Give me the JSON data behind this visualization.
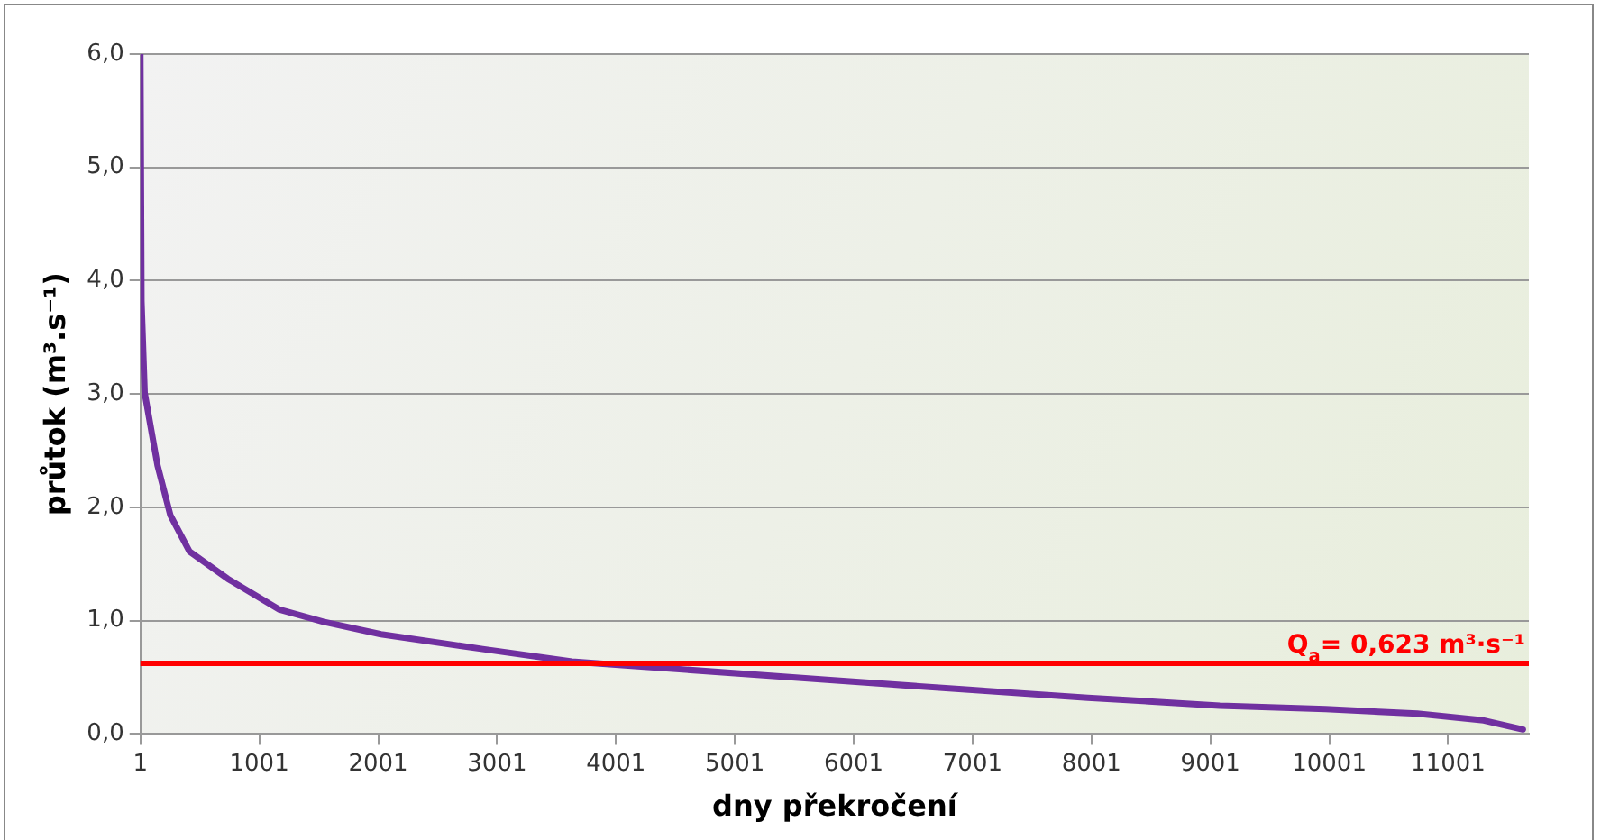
{
  "chart_data": {
    "type": "line",
    "xlabel": "dny překročení",
    "ylabel": "průtok (m³.s⁻¹)",
    "series": [
      {
        "color": "#7030a0",
        "x": [
          1,
          10,
          37,
          145,
          253,
          414,
          736,
          1165,
          1540,
          2025,
          2880,
          3630,
          4025,
          5750,
          6970,
          7970,
          9080,
          9970,
          10740,
          11300,
          11630
        ],
        "values": [
          6.0,
          3.82,
          3.01,
          2.37,
          1.93,
          1.61,
          1.37,
          1.1,
          0.99,
          0.88,
          0.75,
          0.64,
          0.61,
          0.48,
          0.39,
          0.32,
          0.25,
          0.22,
          0.18,
          0.12,
          0.04
        ]
      }
    ],
    "xlim": [
      1,
      11680
    ],
    "xticks": [
      1,
      1001,
      2001,
      3001,
      4001,
      5001,
      6001,
      7001,
      8001,
      9001,
      10001,
      11001
    ],
    "ylim": [
      0,
      6
    ],
    "yticks": [
      {
        "value": 0,
        "label": "0,0"
      },
      {
        "value": 1,
        "label": "1,0"
      },
      {
        "value": 2,
        "label": "2,0"
      },
      {
        "value": 3,
        "label": "3,0"
      },
      {
        "value": 4,
        "label": "4,0"
      },
      {
        "value": 5,
        "label": "5,0"
      },
      {
        "value": 6,
        "label": "6,0"
      }
    ],
    "ref_lines": [
      {
        "axis": "y",
        "value": 0.623,
        "label": "Q$_{a}$= 0,623 m³·s⁻¹",
        "color": "#ff0000"
      }
    ],
    "grid": "y",
    "legend": false,
    "marker": "none",
    "line_style": "solid"
  }
}
